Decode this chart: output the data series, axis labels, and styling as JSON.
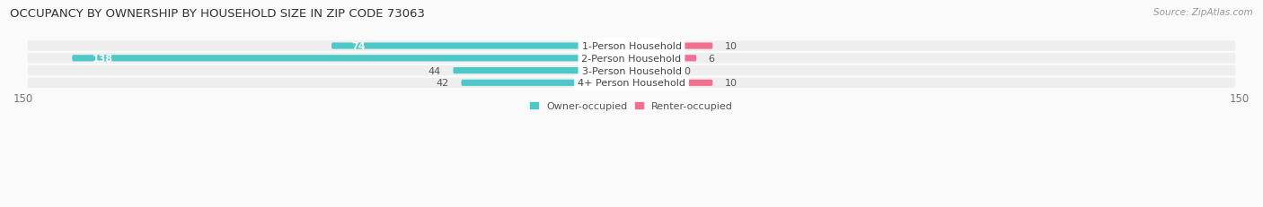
{
  "title": "OCCUPANCY BY OWNERSHIP BY HOUSEHOLD SIZE IN ZIP CODE 73063",
  "source": "Source: ZipAtlas.com",
  "categories": [
    "1-Person Household",
    "2-Person Household",
    "3-Person Household",
    "4+ Person Household"
  ],
  "owner_values": [
    74,
    138,
    44,
    42
  ],
  "renter_values": [
    10,
    6,
    0,
    10
  ],
  "owner_color": "#4DC8C8",
  "renter_color": "#F07090",
  "renter_color_light": "#F0A8C0",
  "axis_max": 150,
  "row_bg_odd": "#EEEEEE",
  "row_bg_even": "#E4E4E4",
  "row_pill_color": "#F5F5F5",
  "title_fontsize": 9.5,
  "source_fontsize": 7.5,
  "tick_fontsize": 8.5,
  "bar_label_fontsize": 8,
  "cat_label_fontsize": 8,
  "legend_fontsize": 8,
  "figsize": [
    14.06,
    2.32
  ],
  "dpi": 100
}
